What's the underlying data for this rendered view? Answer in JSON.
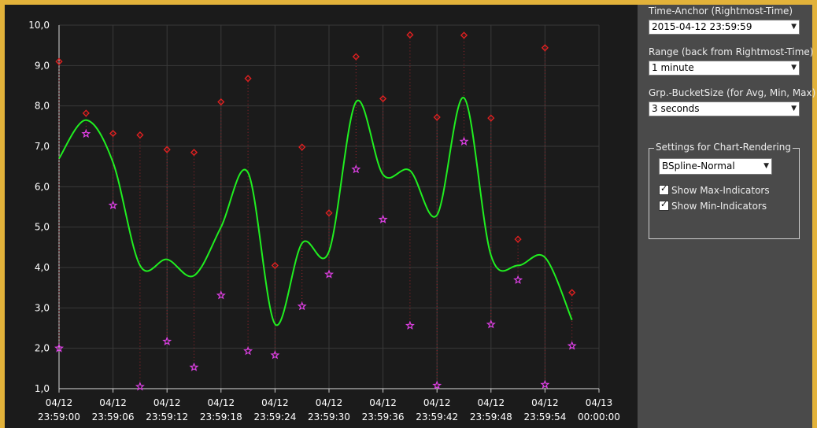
{
  "sidebar": {
    "time_anchor_label": "Time-Anchor (Rightmost-Time)",
    "time_anchor_value": "2015-04-12 23:59:59",
    "range_label": "Range (back from Rightmost-Time)",
    "range_value": "1 minute",
    "bucket_label": "Grp.-BucketSize (for Avg, Min, Max)",
    "bucket_value": "3 seconds",
    "settings_group_title": "Settings for Chart-Rendering",
    "rendering_value": "BSpline-Normal",
    "show_max_label": "Show Max-Indicators",
    "show_max_checked": true,
    "show_min_label": "Show Min-Indicators",
    "show_min_checked": true
  },
  "chart_data": {
    "type": "line",
    "ylim": [
      1.0,
      10.0
    ],
    "grid": true,
    "y_ticks": [
      "1,0",
      "2,0",
      "3,0",
      "4,0",
      "5,0",
      "6,0",
      "7,0",
      "8,0",
      "9,0",
      "10,0"
    ],
    "x_ticks": [
      {
        "date": "04/12",
        "time": "23:59:00"
      },
      {
        "date": "04/12",
        "time": "23:59:06"
      },
      {
        "date": "04/12",
        "time": "23:59:12"
      },
      {
        "date": "04/12",
        "time": "23:59:18"
      },
      {
        "date": "04/12",
        "time": "23:59:24"
      },
      {
        "date": "04/12",
        "time": "23:59:30"
      },
      {
        "date": "04/12",
        "time": "23:59:36"
      },
      {
        "date": "04/12",
        "time": "23:59:42"
      },
      {
        "date": "04/12",
        "time": "23:59:48"
      },
      {
        "date": "04/12",
        "time": "23:59:54"
      },
      {
        "date": "04/13",
        "time": "00:00:00"
      }
    ],
    "x_seconds": [
      0,
      3,
      6,
      9,
      12,
      15,
      18,
      21,
      24,
      27,
      30,
      33,
      36,
      39,
      42,
      45,
      48,
      51,
      54,
      57
    ],
    "series": [
      {
        "values": [
          6.7,
          7.65,
          6.6,
          4.05,
          4.2,
          3.8,
          5.0,
          6.35,
          2.6,
          4.6,
          4.4,
          8.1,
          6.3,
          6.4,
          5.3,
          8.2,
          4.3,
          4.05,
          4.25,
          2.7
        ]
      },
      {
        "values": [
          9.1,
          7.82,
          7.32,
          7.28,
          6.92,
          6.85,
          8.1,
          8.68,
          4.05,
          6.98,
          5.35,
          9.22,
          8.18,
          9.76,
          7.72,
          9.75,
          7.7,
          4.7,
          9.44,
          3.38
        ]
      },
      {
        "values": [
          2.0,
          7.31,
          5.54,
          1.05,
          2.17,
          1.53,
          3.31,
          1.93,
          1.83,
          3.04,
          3.83,
          6.43,
          5.19,
          2.56,
          1.08,
          7.12,
          2.59,
          3.69,
          1.1,
          2.06
        ]
      }
    ]
  }
}
